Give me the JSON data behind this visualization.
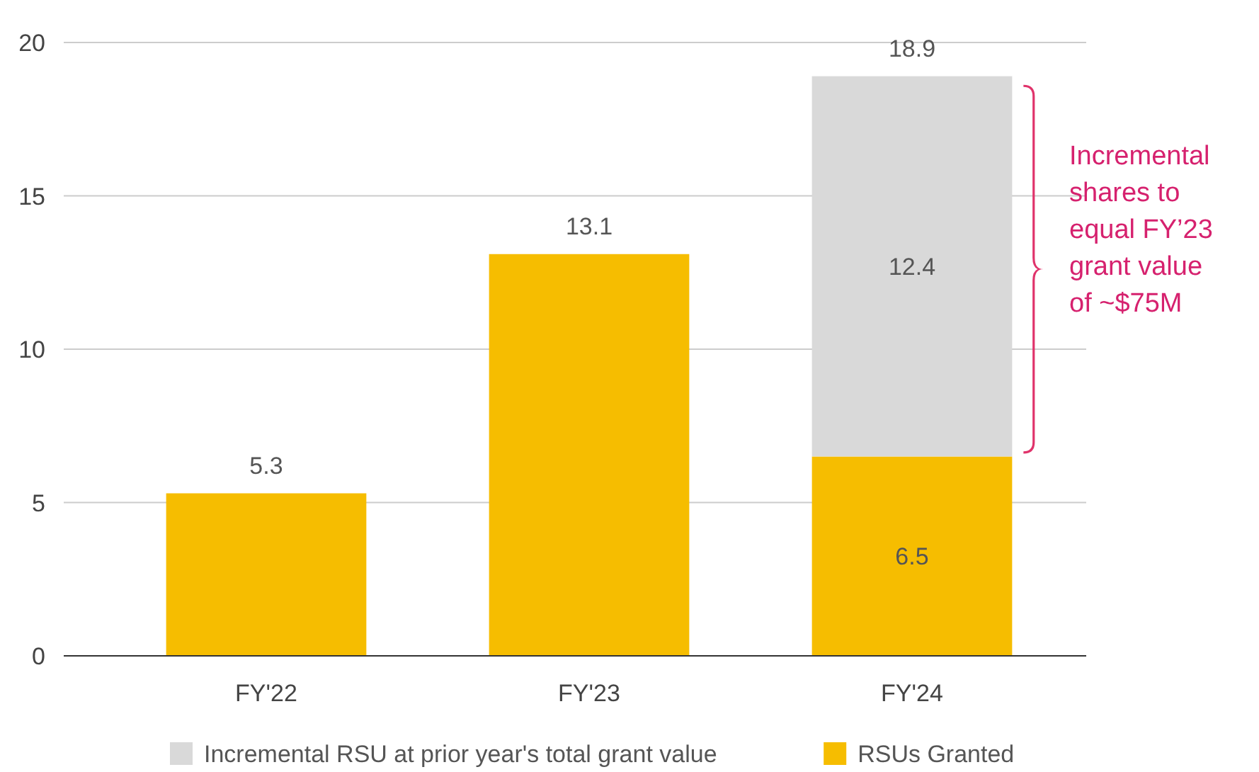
{
  "chart_data": {
    "type": "bar",
    "stacked": true,
    "categories": [
      "FY'22",
      "FY'23",
      "FY'24"
    ],
    "series": [
      {
        "name": "RSUs Granted",
        "color": "#f6bd00",
        "values": [
          5.3,
          13.1,
          6.5
        ]
      },
      {
        "name": "Incremental RSU at prior year's total grant value",
        "color": "#d9d9d9",
        "values": [
          null,
          null,
          12.4
        ]
      }
    ],
    "ylim": [
      0,
      20
    ],
    "yticks": [
      0,
      5,
      10,
      15,
      20
    ],
    "grid": "y",
    "data_labels": true,
    "totals": [
      null,
      null,
      "18.9"
    ],
    "legend": "bottom",
    "annotations": [
      "Incremental shares to equal FY’23 grant value of ~$75M"
    ]
  }
}
